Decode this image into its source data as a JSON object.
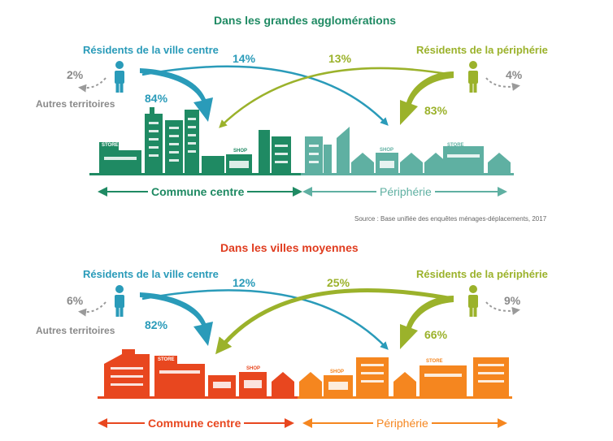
{
  "colors": {
    "blue": "#2a9bb9",
    "olive": "#9bb22b",
    "green_dark": "#1f8a63",
    "teal_light": "#5fb0a2",
    "grey": "#8a8a8a",
    "red": "#e8471f",
    "orange": "#f5861f",
    "title_green": "#1f8a63",
    "title_red": "#e03c1f"
  },
  "top_panel": {
    "title": "Dans les grandes agglomérations",
    "left_residents": "Résidents de la ville centre",
    "right_residents": "Résidents de la périphérie",
    "other_territories": "Autres territoires",
    "left_other_pct": "2%",
    "left_stay_pct": "84%",
    "left_to_periphery_pct": "14%",
    "right_to_center_pct": "13%",
    "right_other_pct": "4%",
    "right_stay_pct": "83%",
    "center_label": "Commune centre",
    "periphery_label": "Périphérie",
    "store_label": "STORE",
    "shop_label": "SHOP",
    "source": "Source : Base unifiée des enquêtes ménages-déplacements, 2017"
  },
  "bottom_panel": {
    "title": "Dans les villes moyennes",
    "left_residents": "Résidents de la ville centre",
    "right_residents": "Résidents de la périphérie",
    "other_territories": "Autres territoires",
    "left_other_pct": "6%",
    "left_stay_pct": "82%",
    "left_to_periphery_pct": "12%",
    "right_to_center_pct": "25%",
    "right_other_pct": "9%",
    "right_stay_pct": "66%",
    "center_label": "Commune centre",
    "periphery_label": "Périphérie",
    "store_label": "STORE",
    "shop_label": "SHOP"
  }
}
